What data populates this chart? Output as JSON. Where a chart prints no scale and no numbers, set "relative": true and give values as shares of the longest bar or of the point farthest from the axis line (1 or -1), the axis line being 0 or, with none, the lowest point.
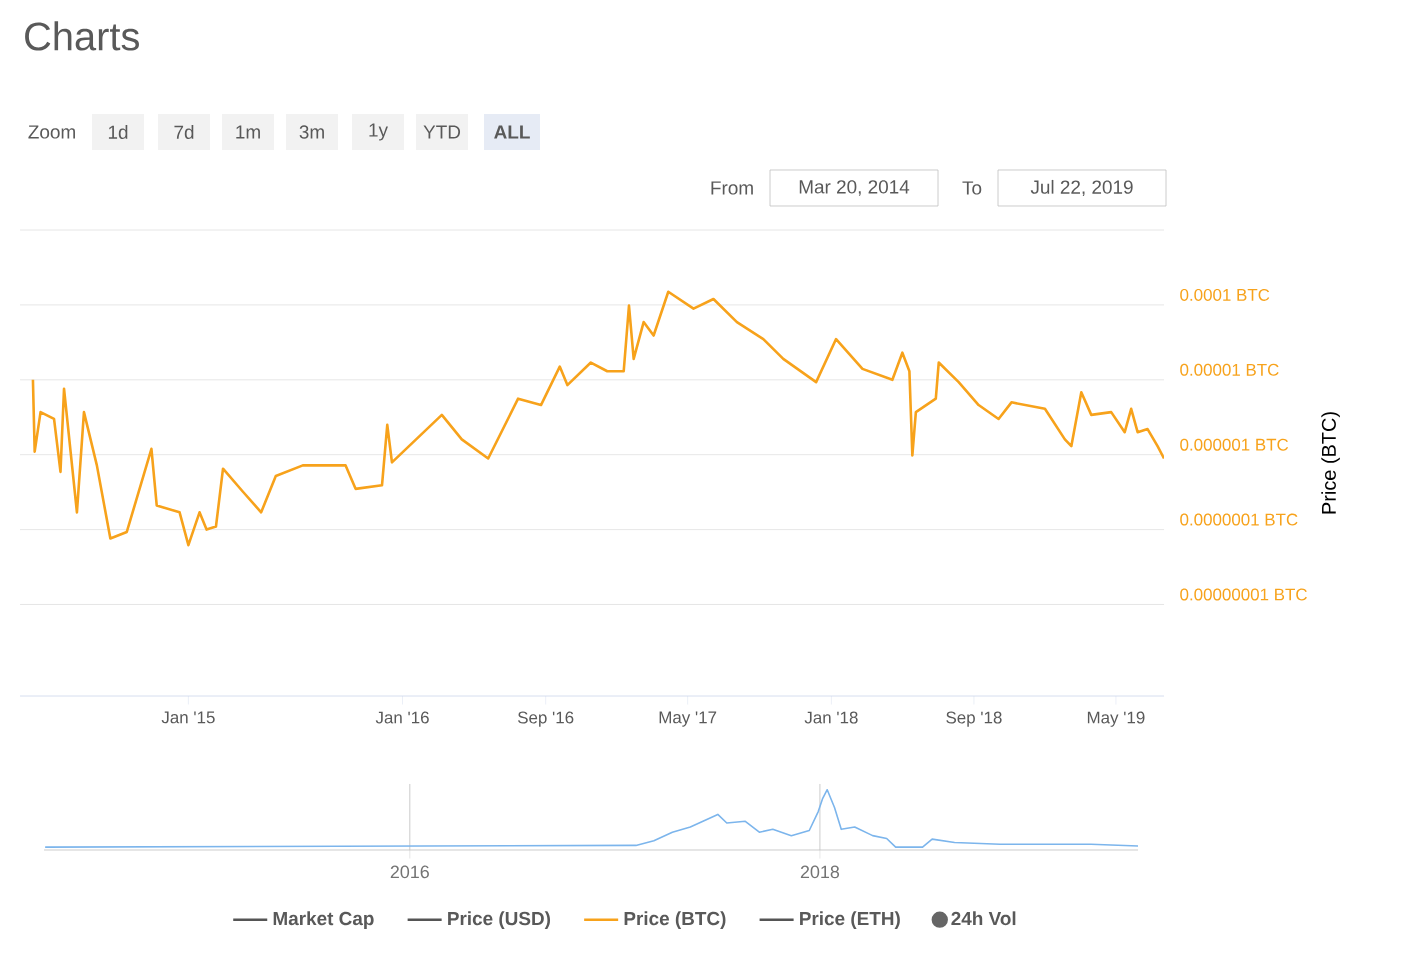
{
  "chart_data": [
    {
      "type": "line",
      "title": "Charts",
      "ylabel": "Price (BTC)",
      "log": true,
      "grid": "y",
      "legend": "bottom",
      "annotations": [
        "Zoom",
        "1d",
        "7d",
        "1m",
        "3m",
        "1y",
        "YTD",
        "ALL",
        "From",
        "Mar 20, 2014",
        "To",
        "Jul 22, 2019"
      ],
      "xlim": [
        "2014-03-20",
        "2019-07-22"
      ],
      "xticks": [
        {
          "value": "2015-01-01",
          "label": "Jan '15"
        },
        {
          "value": "2016-01-01",
          "label": "Jan '16"
        },
        {
          "value": "2016-09-01",
          "label": "Sep '16"
        },
        {
          "value": "2017-05-01",
          "label": "May '17"
        },
        {
          "value": "2018-01-01",
          "label": "Jan '18"
        },
        {
          "value": "2018-09-01",
          "label": "Sep '18"
        },
        {
          "value": "2019-05-01",
          "label": "May '19"
        }
      ],
      "ylim": [
        6e-10,
        0.001
      ],
      "yticks": [
        {
          "value": 0.001,
          "label": null
        },
        {
          "value": 0.0001,
          "label": "0.0001 BTC"
        },
        {
          "value": 1e-05,
          "label": "0.00001 BTC"
        },
        {
          "value": 1e-06,
          "label": "0.000001 BTC"
        },
        {
          "value": 1e-07,
          "label": "0.0000001 BTC"
        },
        {
          "value": 1e-08,
          "label": "0.00000001 BTC"
        }
      ],
      "series": [
        {
          "name": "Market Cap",
          "color": "#555555"
        },
        {
          "name": "Price (USD)",
          "color": "#555555"
        },
        {
          "name": "Price (BTC)",
          "color": "#f7a21b",
          "x": [
            "2014-04-11",
            "2014-04-14",
            "2014-04-24",
            "2014-05-17",
            "2014-05-28",
            "2014-06-03",
            "2014-06-25",
            "2014-07-07",
            "2014-07-29",
            "2014-08-21",
            "2014-09-18",
            "2014-10-30",
            "2014-11-08",
            "2014-12-17",
            "2015-01-01",
            "2015-01-20",
            "2015-02-01",
            "2015-02-17",
            "2015-03-01",
            "2015-04-04",
            "2015-05-05",
            "2015-05-30",
            "2015-07-15",
            "2015-09-26",
            "2015-10-13",
            "2015-11-27",
            "2015-12-06",
            "2015-12-14",
            "2016-03-08",
            "2016-04-11",
            "2016-05-26",
            "2016-07-16",
            "2016-08-24",
            "2016-09-25",
            "2016-10-08",
            "2016-11-17",
            "2016-12-15",
            "2017-01-12",
            "2017-01-21",
            "2017-01-29",
            "2017-02-15",
            "2017-03-04",
            "2017-03-29",
            "2017-05-11",
            "2017-06-14",
            "2017-07-24",
            "2017-09-07",
            "2017-10-11",
            "2017-12-06",
            "2018-01-09",
            "2018-02-23",
            "2018-04-15",
            "2018-05-02",
            "2018-05-14",
            "2018-05-19",
            "2018-05-25",
            "2018-06-28",
            "2018-07-03",
            "2018-08-06",
            "2018-09-09",
            "2018-10-13",
            "2018-11-04",
            "2018-12-31",
            "2019-02-03",
            "2019-02-14",
            "2019-03-03",
            "2019-03-20",
            "2019-04-23",
            "2019-05-16",
            "2019-05-27",
            "2019-06-07",
            "2019-06-24",
            "2019-07-11",
            "2019-07-22"
          ],
          "values": [
            1e-05,
            1.1e-06,
            3.7e-06,
            3e-06,
            5.9e-07,
            7.6e-06,
            1.7e-07,
            3.7e-06,
            7.2e-07,
            7.6e-08,
            9.3e-08,
            1.2e-06,
            2.1e-07,
            1.7e-07,
            6.2e-08,
            1.7e-07,
            1e-07,
            1.1e-07,
            6.5e-07,
            3.2e-07,
            1.7e-07,
            5.2e-07,
            7.2e-07,
            7.2e-07,
            3.5e-07,
            3.9e-07,
            2.5e-06,
            7.9e-07,
            3.4e-06,
            1.6e-06,
            8.9e-07,
            5.6e-06,
            4.6e-06,
            1.5e-05,
            8.5e-06,
            1.7e-05,
            1.3e-05,
            1.3e-05,
            9.8e-05,
            1.9e-05,
            5.9e-05,
            3.9e-05,
            0.00015,
            8.9e-05,
            0.00012,
            5.9e-05,
            3.5e-05,
            1.9e-05,
            9.3e-06,
            3.5e-05,
            1.4e-05,
            1e-05,
            2.3e-05,
            1.3e-05,
            9.8e-07,
            3.7e-06,
            5.6e-06,
            1.7e-05,
            9.3e-06,
            4.6e-06,
            3e-06,
            5e-06,
            4.1e-06,
            1.6e-06,
            1.3e-06,
            6.8e-06,
            3.4e-06,
            3.7e-06,
            2e-06,
            4.1e-06,
            2e-06,
            2.2e-06,
            1.3e-06,
            8.9e-07
          ]
        },
        {
          "name": "Price (ETH)",
          "color": "#555555"
        },
        {
          "name": "24h Vol",
          "type": "scatter",
          "color": "#666666"
        }
      ]
    },
    {
      "type": "line",
      "relative": true,
      "grid": "x",
      "color": "#7cb5ec",
      "xlim": [
        "2014-03-20",
        "2019-07-22"
      ],
      "xticks": [
        {
          "value": "2016-01-01",
          "label": "2016"
        },
        {
          "value": "2018-01-01",
          "label": "2018"
        }
      ],
      "x": [
        "2014-03-22",
        "2017-02-07",
        "2017-03-11",
        "2017-04-13",
        "2017-05-15",
        "2017-07-03",
        "2017-07-19",
        "2017-08-21",
        "2017-09-15",
        "2017-10-09",
        "2017-11-11",
        "2017-12-13",
        "2017-12-29",
        "2018-01-06",
        "2018-01-14",
        "2018-01-27",
        "2018-02-08",
        "2018-03-04",
        "2018-04-05",
        "2018-04-30",
        "2018-05-16",
        "2018-07-03",
        "2018-07-20",
        "2018-08-29",
        "2018-11-18",
        "2019-04-29",
        "2019-07-22"
      ],
      "values": [
        0,
        0.03,
        0.11,
        0.26,
        0.35,
        0.57,
        0.42,
        0.45,
        0.26,
        0.31,
        0.2,
        0.29,
        0.62,
        0.85,
        1,
        0.69,
        0.31,
        0.35,
        0.2,
        0.15,
        0,
        0,
        0.14,
        0.08,
        0.05,
        0.05,
        0.02
      ]
    }
  ]
}
